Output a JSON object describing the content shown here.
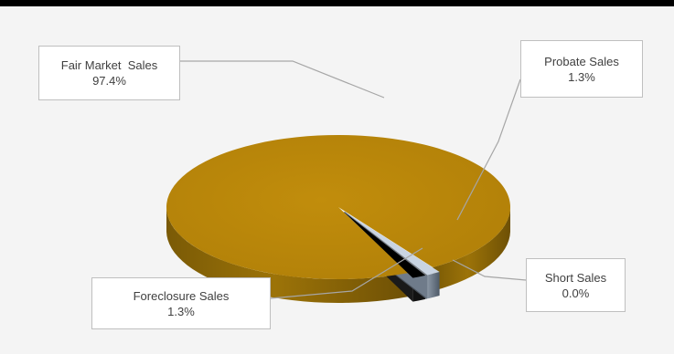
{
  "colors": {
    "background": "#f4f4f4",
    "fair_market": "#b8860b",
    "probate": "#000000",
    "short": "#7f7f7f",
    "foreclosure": "#a9b6c8",
    "leader_line": "#a6a6a6"
  },
  "chart_data": {
    "type": "pie",
    "style": "3d-exploded",
    "categories": [
      "Fair Market  Sales",
      "Probate Sales",
      "Short Sales",
      "Foreclosure Sales"
    ],
    "values": [
      97.4,
      1.3,
      0.0,
      1.3
    ],
    "value_labels": [
      "97.4%",
      "1.3%",
      "0.0%",
      "1.3%"
    ],
    "legend": "none"
  }
}
